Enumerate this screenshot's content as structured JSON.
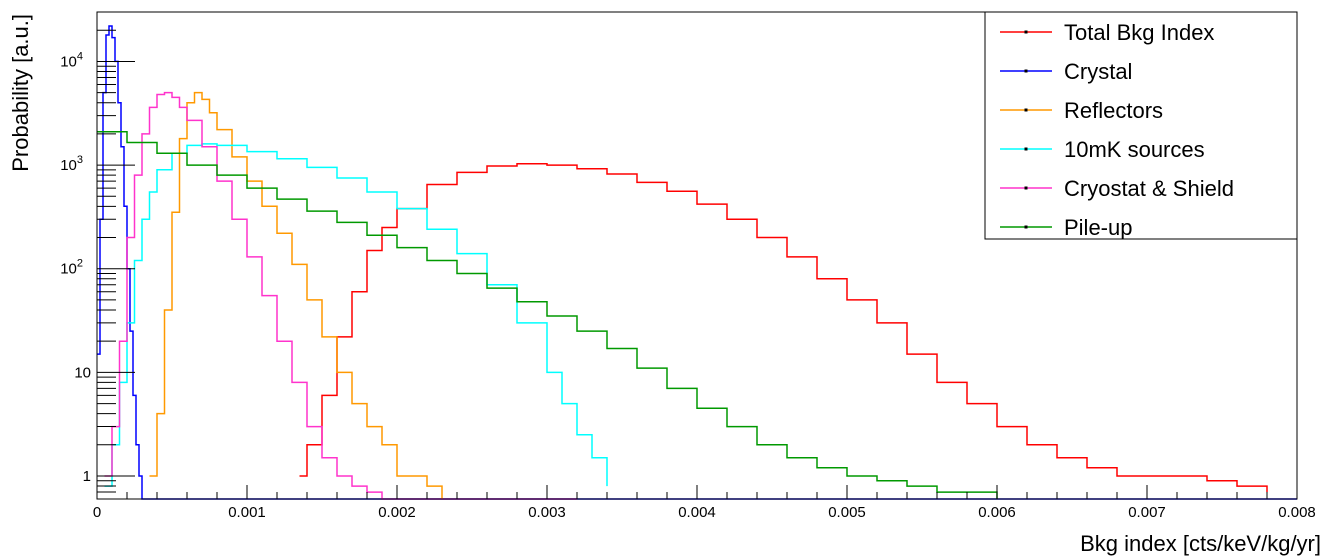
{
  "chart_data": {
    "type": "line",
    "title": "",
    "xlabel": "Bkg index [cts/keV/kg/yr]",
    "ylabel": "Probability [a.u.]",
    "xlim": [
      0,
      0.008
    ],
    "ylim": [
      0.6,
      30000
    ],
    "yscale": "log",
    "grid": false,
    "legend_position": "top-right",
    "x_ticks": [
      {
        "value": 0,
        "label": "0"
      },
      {
        "value": 0.001,
        "label": "0.001"
      },
      {
        "value": 0.002,
        "label": "0.002"
      },
      {
        "value": 0.003,
        "label": "0.003"
      },
      {
        "value": 0.004,
        "label": "0.004"
      },
      {
        "value": 0.005,
        "label": "0.005"
      },
      {
        "value": 0.006,
        "label": "0.006"
      },
      {
        "value": 0.007,
        "label": "0.007"
      },
      {
        "value": 0.008,
        "label": "0.008"
      }
    ],
    "y_ticks": [
      {
        "value": 1,
        "label": "1"
      },
      {
        "value": 10,
        "label": "10"
      },
      {
        "value": 100,
        "label": "10",
        "exp": "2"
      },
      {
        "value": 1000,
        "label": "10",
        "exp": "3"
      },
      {
        "value": 10000,
        "label": "10",
        "exp": "4"
      }
    ],
    "series": [
      {
        "name": "Total Bkg Index",
        "color": "#ff0000",
        "x": [
          0.00135,
          0.0014,
          0.0015,
          0.0016,
          0.0017,
          0.0018,
          0.0019,
          0.002,
          0.0022,
          0.0024,
          0.0026,
          0.0028,
          0.003,
          0.0032,
          0.0034,
          0.0036,
          0.0038,
          0.004,
          0.0042,
          0.0044,
          0.0046,
          0.0048,
          0.005,
          0.0052,
          0.0054,
          0.0056,
          0.0058,
          0.006,
          0.0062,
          0.0064,
          0.0066,
          0.0068,
          0.007,
          0.0072,
          0.0074,
          0.0076,
          0.0078
        ],
        "values": [
          1,
          2,
          6,
          22,
          60,
          150,
          250,
          380,
          650,
          850,
          980,
          1030,
          1000,
          920,
          820,
          680,
          560,
          420,
          300,
          200,
          130,
          80,
          50,
          30,
          15,
          8,
          5,
          3,
          2,
          1.5,
          1.2,
          1,
          1,
          1,
          0.9,
          0.8,
          0.7
        ]
      },
      {
        "name": "Crystal",
        "color": "#0000ff",
        "x": [
          0,
          2e-05,
          4e-05,
          6e-05,
          8e-05,
          0.0001,
          0.00012,
          0.00014,
          0.00016,
          0.00018,
          0.0002,
          0.00022,
          0.00024,
          0.00026,
          0.00028,
          0.0003,
          0.0005,
          0.001,
          0.002,
          0.003,
          0.004,
          0.005,
          0.006,
          0.007,
          0.008
        ],
        "values": [
          15,
          300,
          5000,
          18000,
          22000,
          17000,
          10000,
          4000,
          1500,
          400,
          100,
          25,
          6,
          2,
          1,
          0.6,
          0.6,
          0.6,
          0.6,
          0.6,
          0.6,
          0.6,
          0.6,
          0.6,
          0.6
        ]
      },
      {
        "name": "Reflectors",
        "color": "#ff9900",
        "x": [
          0.00035,
          0.0004,
          0.00045,
          0.0005,
          0.00055,
          0.0006,
          0.00065,
          0.0007,
          0.00075,
          0.0008,
          0.0009,
          0.001,
          0.0011,
          0.0012,
          0.0013,
          0.0014,
          0.0015,
          0.0016,
          0.0017,
          0.0018,
          0.0019,
          0.002,
          0.0022,
          0.0023
        ],
        "values": [
          1,
          4,
          40,
          350,
          1800,
          4000,
          5000,
          4300,
          3200,
          2200,
          1200,
          700,
          400,
          220,
          110,
          50,
          22,
          10,
          5,
          3,
          2,
          1,
          0.8,
          0.6
        ]
      },
      {
        "name": "10mK sources",
        "color": "#00ffff",
        "x": [
          5e-05,
          0.0001,
          0.00015,
          0.0002,
          0.00025,
          0.0003,
          0.00035,
          0.0004,
          0.0005,
          0.0006,
          0.0007,
          0.0008,
          0.001,
          0.0012,
          0.0014,
          0.0016,
          0.0018,
          0.002,
          0.0022,
          0.0024,
          0.0026,
          0.0028,
          0.003,
          0.0031,
          0.0032,
          0.0033,
          0.0034
        ],
        "values": [
          0.8,
          2,
          8,
          30,
          120,
          300,
          550,
          900,
          1300,
          1550,
          1600,
          1550,
          1350,
          1150,
          950,
          750,
          550,
          380,
          240,
          140,
          70,
          30,
          10,
          5,
          2.5,
          1.5,
          0.8
        ]
      },
      {
        "name": "Cryostat & Shield",
        "color": "#ff33cc",
        "x": [
          5e-05,
          0.0001,
          0.00015,
          0.0002,
          0.00025,
          0.0003,
          0.00035,
          0.0004,
          0.00045,
          0.0005,
          0.00055,
          0.0006,
          0.0007,
          0.0008,
          0.0009,
          0.001,
          0.0011,
          0.0012,
          0.0013,
          0.0014,
          0.0015,
          0.0016,
          0.0017,
          0.0018,
          0.0019,
          0.002,
          0.0022,
          0.0024,
          0.0026,
          0.0028,
          0.003,
          0.0032
        ],
        "values": [
          1,
          3,
          20,
          200,
          800,
          2000,
          3600,
          4800,
          5000,
          4500,
          3600,
          2700,
          1500,
          700,
          300,
          130,
          55,
          20,
          8,
          3,
          1.5,
          1,
          0.8,
          0.7,
          0.6,
          0.6,
          0.6,
          0.6,
          0.6,
          0.6,
          0.6,
          0.6
        ]
      },
      {
        "name": "Pile-up",
        "color": "#009900",
        "x": [
          0,
          0.0002,
          0.0004,
          0.0006,
          0.0008,
          0.001,
          0.0012,
          0.0014,
          0.0016,
          0.0018,
          0.002,
          0.0022,
          0.0024,
          0.0026,
          0.0028,
          0.003,
          0.0032,
          0.0034,
          0.0036,
          0.0038,
          0.004,
          0.0042,
          0.0044,
          0.0046,
          0.0048,
          0.005,
          0.0052,
          0.0054,
          0.0056,
          0.0058,
          0.006
        ],
        "values": [
          2100,
          1650,
          1300,
          1000,
          800,
          600,
          470,
          360,
          280,
          210,
          160,
          120,
          90,
          65,
          48,
          35,
          25,
          17,
          11,
          7,
          4.5,
          3,
          2,
          1.5,
          1.2,
          1,
          0.9,
          0.8,
          0.7,
          0.7,
          0.6
        ]
      }
    ]
  }
}
